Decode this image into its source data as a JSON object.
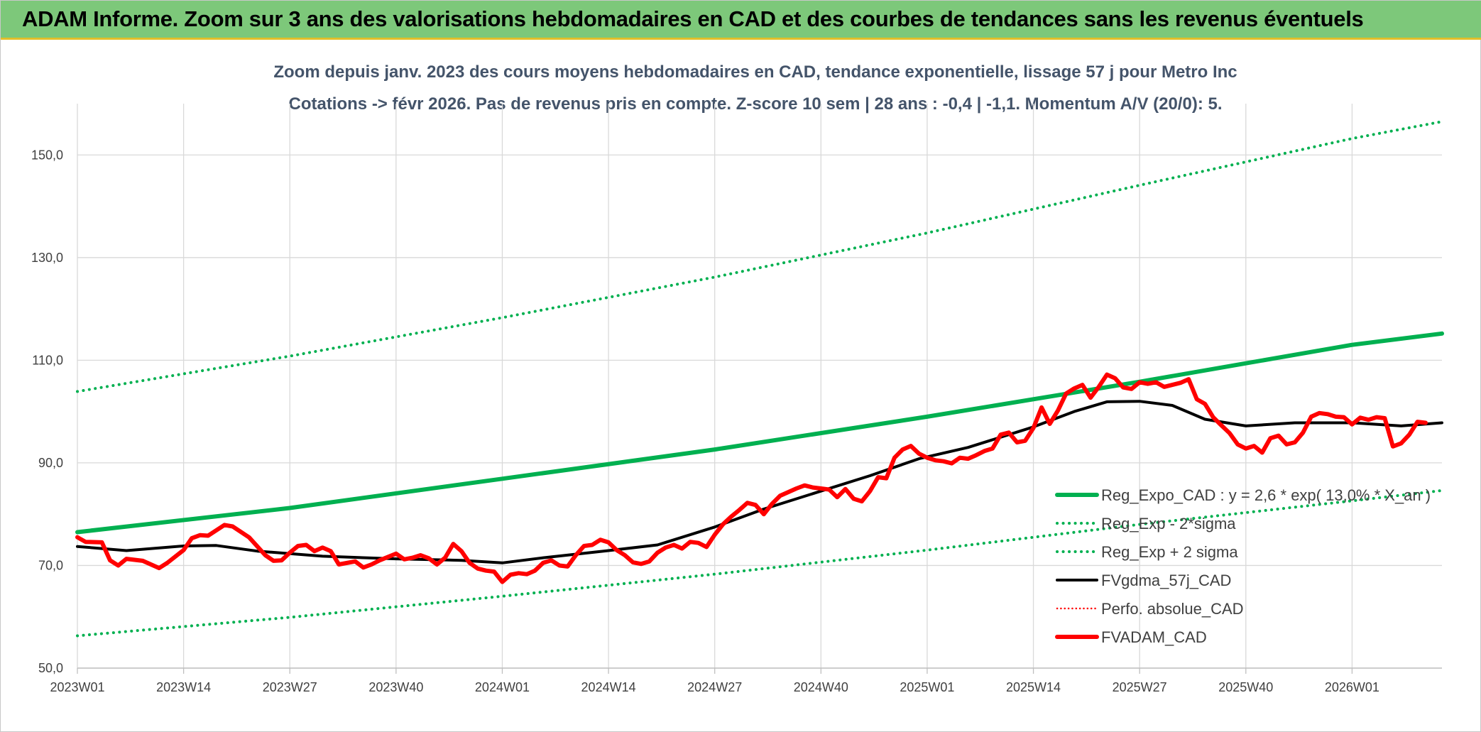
{
  "header": {
    "title": "ADAM Informe. Zoom sur 3 ans des valorisations hebdomadaires en CAD et des courbes de tendances sans les revenus éventuels"
  },
  "chart_data": {
    "type": "line",
    "subtitle_lines": [
      "Zoom depuis janv. 2023 des cours moyens hebdomadaires en CAD, tendance exponentielle, lissage 57 j pour Metro Inc",
      "Cotations -> févr 2026. Pas de revenus pris en compte. Z-score 10 sem | 28 ans : -0,4 | -1,1. Momentum A/V (20/0): 5."
    ],
    "x_unit": "week",
    "x_start_week": "2023W01",
    "x_range_weeks": [
      "2023W01",
      "2026W12"
    ],
    "x_tick_labels": [
      "2023W01",
      "2023W14",
      "2023W27",
      "2023W40",
      "2024W01",
      "2024W14",
      "2024W27",
      "2024W40",
      "2025W01",
      "2025W14",
      "2025W27",
      "2025W40",
      "2026W01"
    ],
    "x_tick_weeks": [
      "2023W01",
      "2023W14",
      "2023W27",
      "2023W40",
      "2024W01",
      "2024W14",
      "2024W27",
      "2024W40",
      "2025W01",
      "2025W14",
      "2025W27",
      "2025W40",
      "2026W01"
    ],
    "ylim": [
      50,
      160
    ],
    "y_ticks": [
      50,
      70,
      90,
      110,
      130,
      150
    ],
    "y_tick_labels": [
      "50,0",
      "70,0",
      "90,0",
      "110,0",
      "130,0",
      "150,0"
    ],
    "grid": true,
    "legend_position": "bottom-right",
    "series": [
      {
        "name": "Reg_Expo_CAD : y = 2,6 * exp( 13,0% * X_an )",
        "color": "#00b050",
        "style": "solid",
        "weight": "thick",
        "points": [
          [
            "2023W01",
            76.5
          ],
          [
            "2023W27",
            81.2
          ],
          [
            "2024W01",
            86.9
          ],
          [
            "2024W27",
            92.6
          ],
          [
            "2025W01",
            99.0
          ],
          [
            "2025W27",
            105.8
          ],
          [
            "2026W01",
            113.0
          ],
          [
            "2026W12",
            115.2
          ]
        ]
      },
      {
        "name": "Reg_Exp - 2*sigma",
        "color": "#00b050",
        "style": "dotted",
        "weight": "medium",
        "points": [
          [
            "2023W01",
            56.3
          ],
          [
            "2023W27",
            59.9
          ],
          [
            "2024W01",
            64.0
          ],
          [
            "2024W27",
            68.3
          ],
          [
            "2025W01",
            73.0
          ],
          [
            "2025W27",
            78.0
          ],
          [
            "2026W01",
            82.6
          ],
          [
            "2026W12",
            84.6
          ]
        ]
      },
      {
        "name": "Reg_Exp + 2 sigma",
        "color": "#00b050",
        "style": "dotted",
        "weight": "medium",
        "points": [
          [
            "2023W01",
            103.9
          ],
          [
            "2023W27",
            110.8
          ],
          [
            "2024W01",
            118.3
          ],
          [
            "2024W27",
            126.2
          ],
          [
            "2025W01",
            134.8
          ],
          [
            "2025W27",
            144.1
          ],
          [
            "2026W01",
            153.2
          ],
          [
            "2026W12",
            156.5
          ]
        ]
      },
      {
        "name": "FVgdma_57j_CAD",
        "color": "#000000",
        "style": "solid",
        "weight": "medium",
        "points": [
          [
            "2023W01",
            73.7
          ],
          [
            "2023W07",
            72.9
          ],
          [
            "2023W14",
            73.8
          ],
          [
            "2023W18",
            73.9
          ],
          [
            "2023W23",
            72.8
          ],
          [
            "2023W31",
            71.8
          ],
          [
            "2023W40",
            71.3
          ],
          [
            "2023W48",
            71.0
          ],
          [
            "2024W01",
            70.5
          ],
          [
            "2024W06",
            71.5
          ],
          [
            "2024W14",
            72.9
          ],
          [
            "2024W20",
            74.0
          ],
          [
            "2024W27",
            77.5
          ],
          [
            "2024W33",
            81.0
          ],
          [
            "2024W40",
            84.5
          ],
          [
            "2024W46",
            87.5
          ],
          [
            "2024W52",
            90.8
          ],
          [
            "2025W06",
            93.0
          ],
          [
            "2025W14",
            97.0
          ],
          [
            "2025W19",
            100.0
          ],
          [
            "2025W23",
            101.9
          ],
          [
            "2025W27",
            102.0
          ],
          [
            "2025W31",
            101.2
          ],
          [
            "2025W35",
            98.5
          ],
          [
            "2025W40",
            97.2
          ],
          [
            "2025W46",
            97.8
          ],
          [
            "2026W01",
            97.8
          ],
          [
            "2026W07",
            97.2
          ],
          [
            "2026W12",
            97.8
          ]
        ]
      },
      {
        "name": "Perfo. absolue_CAD",
        "color": "#ff0000",
        "style": "dotted",
        "weight": "thin",
        "points": []
      },
      {
        "name": "FVADAM_CAD",
        "color": "#ff0000",
        "style": "solid",
        "weight": "thick",
        "points": [
          [
            "2023W01",
            75.5
          ],
          [
            "2023W02",
            74.6
          ],
          [
            "2023W04",
            74.5
          ],
          [
            "2023W05",
            71.0
          ],
          [
            "2023W06",
            70.0
          ],
          [
            "2023W07",
            71.3
          ],
          [
            "2023W09",
            70.9
          ],
          [
            "2023W11",
            69.5
          ],
          [
            "2023W12",
            70.5
          ],
          [
            "2023W14",
            73.0
          ],
          [
            "2023W15",
            75.3
          ],
          [
            "2023W16",
            75.9
          ],
          [
            "2023W17",
            75.8
          ],
          [
            "2023W19",
            77.9
          ],
          [
            "2023W20",
            77.6
          ],
          [
            "2023W22",
            75.5
          ],
          [
            "2023W24",
            72.0
          ],
          [
            "2023W25",
            70.9
          ],
          [
            "2023W26",
            71.0
          ],
          [
            "2023W27",
            72.5
          ],
          [
            "2023W28",
            73.8
          ],
          [
            "2023W29",
            74.0
          ],
          [
            "2023W30",
            72.8
          ],
          [
            "2023W31",
            73.5
          ],
          [
            "2023W32",
            72.8
          ],
          [
            "2023W33",
            70.2
          ],
          [
            "2023W35",
            70.8
          ],
          [
            "2023W36",
            69.6
          ],
          [
            "2023W37",
            70.2
          ],
          [
            "2023W38",
            71.0
          ],
          [
            "2023W40",
            72.3
          ],
          [
            "2023W41",
            71.2
          ],
          [
            "2023W42",
            71.5
          ],
          [
            "2023W43",
            72.0
          ],
          [
            "2023W44",
            71.4
          ],
          [
            "2023W45",
            70.2
          ],
          [
            "2023W46",
            71.5
          ],
          [
            "2023W47",
            74.2
          ],
          [
            "2023W48",
            72.8
          ],
          [
            "2023W49",
            70.5
          ],
          [
            "2023W50",
            69.4
          ],
          [
            "2023W51",
            69.0
          ],
          [
            "2023W52",
            68.8
          ],
          [
            "2024W01",
            66.8
          ],
          [
            "2024W02",
            68.2
          ],
          [
            "2024W03",
            68.5
          ],
          [
            "2024W04",
            68.3
          ],
          [
            "2024W05",
            69.0
          ],
          [
            "2024W06",
            70.5
          ],
          [
            "2024W07",
            71.0
          ],
          [
            "2024W08",
            70.0
          ],
          [
            "2024W09",
            69.8
          ],
          [
            "2024W10",
            72.0
          ],
          [
            "2024W11",
            73.8
          ],
          [
            "2024W12",
            74.0
          ],
          [
            "2024W13",
            75.0
          ],
          [
            "2024W14",
            74.5
          ],
          [
            "2024W15",
            73.0
          ],
          [
            "2024W16",
            72.0
          ],
          [
            "2024W17",
            70.6
          ],
          [
            "2024W18",
            70.3
          ],
          [
            "2024W19",
            70.8
          ],
          [
            "2024W20",
            72.5
          ],
          [
            "2024W21",
            73.5
          ],
          [
            "2024W22",
            74.0
          ],
          [
            "2024W23",
            73.3
          ],
          [
            "2024W24",
            74.6
          ],
          [
            "2024W25",
            74.4
          ],
          [
            "2024W26",
            73.6
          ],
          [
            "2024W27",
            76.0
          ],
          [
            "2024W28",
            78.0
          ],
          [
            "2024W29",
            79.5
          ],
          [
            "2024W30",
            80.8
          ],
          [
            "2024W31",
            82.2
          ],
          [
            "2024W32",
            81.8
          ],
          [
            "2024W33",
            80.0
          ],
          [
            "2024W34",
            82.0
          ],
          [
            "2024W35",
            83.6
          ],
          [
            "2024W36",
            84.3
          ],
          [
            "2024W37",
            85.0
          ],
          [
            "2024W38",
            85.6
          ],
          [
            "2024W39",
            85.2
          ],
          [
            "2024W40",
            85.0
          ],
          [
            "2024W41",
            84.8
          ],
          [
            "2024W42",
            83.3
          ],
          [
            "2024W43",
            84.9
          ],
          [
            "2024W44",
            83.0
          ],
          [
            "2024W45",
            82.5
          ],
          [
            "2024W46",
            84.5
          ],
          [
            "2024W47",
            87.2
          ],
          [
            "2024W48",
            87.0
          ],
          [
            "2024W49",
            91.0
          ],
          [
            "2024W50",
            92.6
          ],
          [
            "2024W51",
            93.3
          ],
          [
            "2024W52",
            91.8
          ],
          [
            "2025W01",
            91.0
          ],
          [
            "2025W02",
            90.5
          ],
          [
            "2025W03",
            90.3
          ],
          [
            "2025W04",
            89.9
          ],
          [
            "2025W05",
            91.0
          ],
          [
            "2025W06",
            90.8
          ],
          [
            "2025W07",
            91.5
          ],
          [
            "2025W08",
            92.3
          ],
          [
            "2025W09",
            92.8
          ],
          [
            "2025W10",
            95.5
          ],
          [
            "2025W11",
            95.9
          ],
          [
            "2025W12",
            94.0
          ],
          [
            "2025W13",
            94.3
          ],
          [
            "2025W14",
            96.8
          ],
          [
            "2025W15",
            100.8
          ],
          [
            "2025W16",
            97.6
          ],
          [
            "2025W17",
            100.2
          ],
          [
            "2025W18",
            103.5
          ],
          [
            "2025W19",
            104.5
          ],
          [
            "2025W20",
            105.2
          ],
          [
            "2025W21",
            102.7
          ],
          [
            "2025W22",
            104.8
          ],
          [
            "2025W23",
            107.2
          ],
          [
            "2025W24",
            106.5
          ],
          [
            "2025W25",
            104.7
          ],
          [
            "2025W26",
            104.4
          ],
          [
            "2025W27",
            105.7
          ],
          [
            "2025W28",
            105.4
          ],
          [
            "2025W29",
            105.7
          ],
          [
            "2025W30",
            104.8
          ],
          [
            "2025W31",
            105.2
          ],
          [
            "2025W32",
            105.6
          ],
          [
            "2025W33",
            106.3
          ],
          [
            "2025W34",
            102.4
          ],
          [
            "2025W35",
            101.5
          ],
          [
            "2025W36",
            98.9
          ],
          [
            "2025W37",
            97.3
          ],
          [
            "2025W38",
            95.8
          ],
          [
            "2025W39",
            93.6
          ],
          [
            "2025W40",
            92.8
          ],
          [
            "2025W41",
            93.3
          ],
          [
            "2025W42",
            92.0
          ],
          [
            "2025W43",
            94.8
          ],
          [
            "2025W44",
            95.3
          ],
          [
            "2025W45",
            93.6
          ],
          [
            "2025W46",
            94.0
          ],
          [
            "2025W47",
            95.9
          ],
          [
            "2025W48",
            99.0
          ],
          [
            "2025W49",
            99.7
          ],
          [
            "2025W50",
            99.5
          ],
          [
            "2025W51",
            99.0
          ],
          [
            "2025W52",
            98.9
          ],
          [
            "2026W01",
            97.5
          ],
          [
            "2026W02",
            98.8
          ],
          [
            "2026W03",
            98.4
          ],
          [
            "2026W04",
            98.9
          ],
          [
            "2026W05",
            98.7
          ],
          [
            "2026W06",
            93.2
          ],
          [
            "2026W07",
            93.8
          ],
          [
            "2026W08",
            95.5
          ],
          [
            "2026W09",
            98.0
          ],
          [
            "2026W10",
            97.8
          ]
        ]
      }
    ]
  }
}
